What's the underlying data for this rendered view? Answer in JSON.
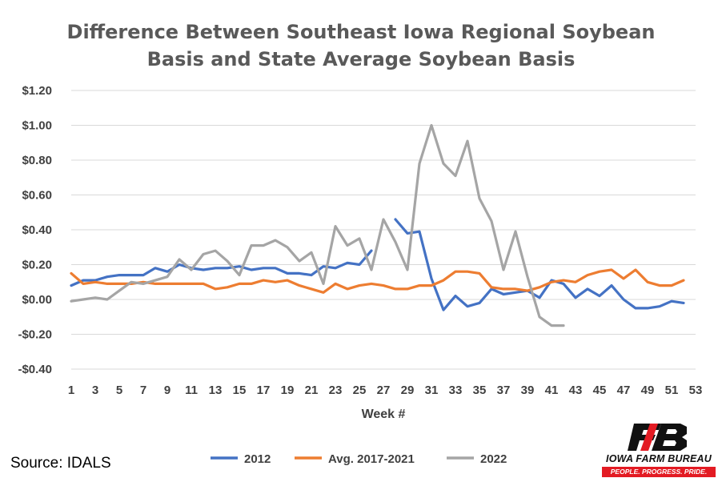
{
  "chart_data": {
    "type": "line",
    "title_lines": [
      "Difference Between Southeast Iowa Regional Soybean",
      "Basis and State Average Soybean Basis"
    ],
    "xlabel": "Week #",
    "ylabel": "",
    "xlim": [
      1,
      53
    ],
    "ylim": [
      -0.4,
      1.2
    ],
    "y_ticks": [
      -0.4,
      -0.2,
      0.0,
      0.2,
      0.4,
      0.6,
      0.8,
      1.0,
      1.2
    ],
    "y_tick_labels": [
      "-$0.40",
      "-$0.20",
      "$0.00",
      "$0.20",
      "$0.40",
      "$0.60",
      "$0.80",
      "$1.00",
      "$1.20"
    ],
    "x_ticks": [
      1,
      3,
      5,
      7,
      9,
      11,
      13,
      15,
      17,
      19,
      21,
      23,
      25,
      27,
      29,
      31,
      33,
      35,
      37,
      39,
      41,
      43,
      45,
      47,
      49,
      51,
      53
    ],
    "x_tick_labels": [
      "1",
      "3",
      "5",
      "7",
      "9",
      "11",
      "13",
      "15",
      "17",
      "19",
      "21",
      "23",
      "25",
      "27",
      "29",
      "31",
      "33",
      "35",
      "37",
      "39",
      "41",
      "43",
      "45",
      "47",
      "49",
      "51",
      "53"
    ],
    "grid": true,
    "legend_position": "bottom",
    "series": [
      {
        "name": "2012",
        "color": "#4472c4",
        "points": [
          [
            1,
            0.08
          ],
          [
            2,
            0.11
          ],
          [
            3,
            0.11
          ],
          [
            4,
            0.13
          ],
          [
            5,
            0.14
          ],
          [
            6,
            0.14
          ],
          [
            7,
            0.14
          ],
          [
            8,
            0.18
          ],
          [
            9,
            0.16
          ],
          [
            10,
            0.2
          ],
          [
            11,
            0.18
          ],
          [
            12,
            0.17
          ],
          [
            13,
            0.18
          ],
          [
            14,
            0.18
          ],
          [
            15,
            0.19
          ],
          [
            16,
            0.17
          ],
          [
            17,
            0.18
          ],
          [
            18,
            0.18
          ],
          [
            19,
            0.15
          ],
          [
            20,
            0.15
          ],
          [
            21,
            0.14
          ],
          [
            22,
            0.19
          ],
          [
            23,
            0.18
          ],
          [
            24,
            0.21
          ],
          [
            25,
            0.2
          ],
          [
            26,
            0.28
          ],
          null,
          [
            28,
            0.46
          ],
          [
            29,
            0.38
          ],
          [
            30,
            0.39
          ],
          [
            31,
            0.12
          ],
          [
            32,
            -0.06
          ],
          [
            33,
            0.02
          ],
          [
            34,
            -0.04
          ],
          [
            35,
            -0.02
          ],
          [
            36,
            0.06
          ],
          [
            37,
            0.03
          ],
          [
            38,
            0.04
          ],
          [
            39,
            0.05
          ],
          [
            40,
            0.01
          ],
          [
            41,
            0.11
          ],
          [
            42,
            0.09
          ],
          [
            43,
            0.01
          ],
          [
            44,
            0.06
          ],
          [
            45,
            0.02
          ],
          [
            46,
            0.08
          ],
          [
            47,
            0.0
          ],
          [
            48,
            -0.05
          ],
          [
            49,
            -0.05
          ],
          [
            50,
            -0.04
          ],
          [
            51,
            -0.01
          ],
          [
            52,
            -0.02
          ]
        ]
      },
      {
        "name": "Avg. 2017-2021",
        "color": "#ed7d31",
        "points": [
          [
            1,
            0.15
          ],
          [
            2,
            0.09
          ],
          [
            3,
            0.1
          ],
          [
            4,
            0.09
          ],
          [
            5,
            0.09
          ],
          [
            6,
            0.09
          ],
          [
            7,
            0.1
          ],
          [
            8,
            0.09
          ],
          [
            9,
            0.09
          ],
          [
            10,
            0.09
          ],
          [
            11,
            0.09
          ],
          [
            12,
            0.09
          ],
          [
            13,
            0.06
          ],
          [
            14,
            0.07
          ],
          [
            15,
            0.09
          ],
          [
            16,
            0.09
          ],
          [
            17,
            0.11
          ],
          [
            18,
            0.1
          ],
          [
            19,
            0.11
          ],
          [
            20,
            0.08
          ],
          [
            21,
            0.06
          ],
          [
            22,
            0.04
          ],
          [
            23,
            0.09
          ],
          [
            24,
            0.06
          ],
          [
            25,
            0.08
          ],
          [
            26,
            0.09
          ],
          [
            27,
            0.08
          ],
          [
            28,
            0.06
          ],
          [
            29,
            0.06
          ],
          [
            30,
            0.08
          ],
          [
            31,
            0.08
          ],
          [
            32,
            0.11
          ],
          [
            33,
            0.16
          ],
          [
            34,
            0.16
          ],
          [
            35,
            0.15
          ],
          [
            36,
            0.07
          ],
          [
            37,
            0.06
          ],
          [
            38,
            0.06
          ],
          [
            39,
            0.05
          ],
          [
            40,
            0.07
          ],
          [
            41,
            0.1
          ],
          [
            42,
            0.11
          ],
          [
            43,
            0.1
          ],
          [
            44,
            0.14
          ],
          [
            45,
            0.16
          ],
          [
            46,
            0.17
          ],
          [
            47,
            0.12
          ],
          [
            48,
            0.17
          ],
          [
            49,
            0.1
          ],
          [
            50,
            0.08
          ],
          [
            51,
            0.08
          ],
          [
            52,
            0.11
          ]
        ]
      },
      {
        "name": "2022",
        "color": "#a5a5a5",
        "points": [
          [
            1,
            -0.01
          ],
          [
            2,
            0.0
          ],
          [
            3,
            0.01
          ],
          [
            4,
            0.0
          ],
          [
            5,
            0.05
          ],
          [
            6,
            0.1
          ],
          [
            7,
            0.09
          ],
          [
            8,
            0.11
          ],
          [
            9,
            0.13
          ],
          [
            10,
            0.23
          ],
          [
            11,
            0.17
          ],
          [
            12,
            0.26
          ],
          [
            13,
            0.28
          ],
          [
            14,
            0.22
          ],
          [
            15,
            0.14
          ],
          [
            16,
            0.31
          ],
          [
            17,
            0.31
          ],
          [
            18,
            0.34
          ],
          [
            19,
            0.3
          ],
          [
            20,
            0.22
          ],
          [
            21,
            0.27
          ],
          [
            22,
            0.09
          ],
          [
            23,
            0.42
          ],
          [
            24,
            0.31
          ],
          [
            25,
            0.35
          ],
          [
            26,
            0.17
          ],
          [
            27,
            0.46
          ],
          [
            28,
            0.33
          ],
          [
            29,
            0.17
          ],
          [
            30,
            0.78
          ],
          [
            31,
            1.0
          ],
          [
            32,
            0.78
          ],
          [
            33,
            0.71
          ],
          [
            34,
            0.91
          ],
          [
            35,
            0.58
          ],
          [
            36,
            0.45
          ],
          [
            37,
            0.17
          ],
          [
            38,
            0.39
          ],
          [
            39,
            0.13
          ],
          [
            40,
            -0.1
          ],
          [
            41,
            -0.15
          ],
          [
            42,
            -0.15
          ]
        ]
      }
    ]
  },
  "source_text": "Source: IDALS",
  "logo": {
    "name": "IOWA FARM BUREAU",
    "tagline": "PEOPLE. PROGRESS. PRIDE.",
    "mark_color": "#111111",
    "accent_color": "#e31b23"
  }
}
